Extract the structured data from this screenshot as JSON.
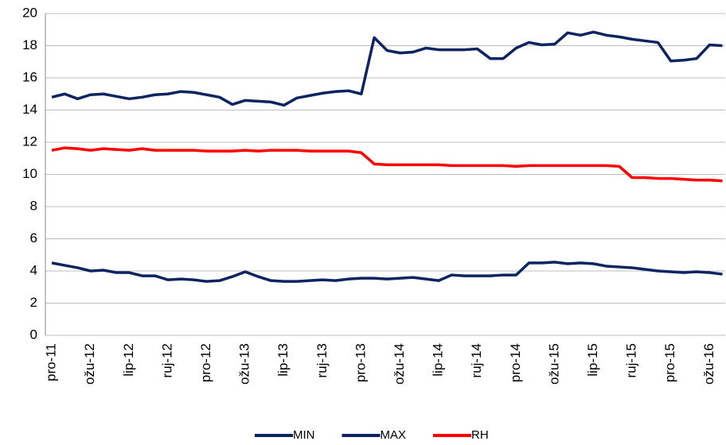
{
  "chart_data": {
    "type": "line",
    "categories": [
      "pro-11",
      null,
      null,
      "ožu-12",
      null,
      null,
      "lip-12",
      null,
      null,
      "ruj-12",
      null,
      null,
      "pro-12",
      null,
      null,
      "ožu-13",
      null,
      null,
      "lip-13",
      null,
      null,
      "ruj-13",
      null,
      null,
      "pro-13",
      null,
      null,
      "ožu-14",
      null,
      null,
      "lip-14",
      null,
      null,
      "ruj-14",
      null,
      null,
      "pro-14",
      null,
      null,
      "ožu-15",
      null,
      null,
      "lip-15",
      null,
      null,
      "ruj-15",
      null,
      null,
      "pro-15",
      null,
      null,
      "ožu-16",
      null
    ],
    "series": [
      {
        "name": "MIN",
        "color": "#0c2461",
        "values": [
          4.5,
          4.35,
          4.2,
          4.0,
          4.05,
          3.9,
          3.9,
          3.7,
          3.7,
          3.45,
          3.5,
          3.45,
          3.35,
          3.4,
          3.65,
          3.95,
          3.65,
          3.4,
          3.35,
          3.35,
          3.4,
          3.45,
          3.4,
          3.5,
          3.55,
          3.55,
          3.5,
          3.55,
          3.6,
          3.5,
          3.4,
          3.75,
          3.7,
          3.7,
          3.7,
          3.75,
          3.75,
          4.5,
          4.5,
          4.55,
          4.45,
          4.5,
          4.45,
          4.3,
          4.25,
          4.2,
          4.1,
          4.0,
          3.95,
          3.9,
          3.95,
          3.9,
          3.8
        ]
      },
      {
        "name": "MAX",
        "color": "#0c2461",
        "values": [
          14.8,
          15.0,
          14.7,
          14.95,
          15.0,
          14.85,
          14.7,
          14.8,
          14.95,
          15.0,
          15.15,
          15.1,
          14.95,
          14.8,
          14.35,
          14.6,
          14.55,
          14.5,
          14.3,
          14.75,
          14.9,
          15.05,
          15.15,
          15.2,
          15.0,
          18.5,
          17.7,
          17.55,
          17.6,
          17.85,
          17.75,
          17.75,
          17.75,
          17.8,
          17.2,
          17.2,
          17.85,
          18.2,
          18.05,
          18.1,
          18.8,
          18.65,
          18.85,
          18.65,
          18.55,
          18.4,
          18.3,
          18.2,
          17.05,
          17.1,
          17.2,
          18.05,
          18.0
        ]
      },
      {
        "name": "RH",
        "color": "#ff0000",
        "values": [
          11.5,
          11.65,
          11.6,
          11.5,
          11.6,
          11.55,
          11.5,
          11.6,
          11.5,
          11.5,
          11.5,
          11.5,
          11.45,
          11.45,
          11.45,
          11.5,
          11.45,
          11.5,
          11.5,
          11.5,
          11.45,
          11.45,
          11.45,
          11.45,
          11.35,
          10.65,
          10.6,
          10.6,
          10.6,
          10.6,
          10.6,
          10.55,
          10.55,
          10.55,
          10.55,
          10.55,
          10.5,
          10.55,
          10.55,
          10.55,
          10.55,
          10.55,
          10.55,
          10.55,
          10.5,
          9.8,
          9.8,
          9.75,
          9.75,
          9.7,
          9.65,
          9.65,
          9.6
        ]
      }
    ],
    "ylim": [
      0,
      20
    ],
    "yticks": [
      0,
      2,
      4,
      6,
      8,
      10,
      12,
      14,
      16,
      18,
      20
    ],
    "grid": true,
    "legend": "bottom"
  }
}
